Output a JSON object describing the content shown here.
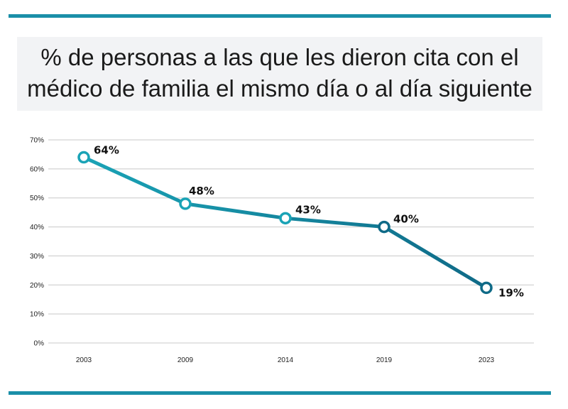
{
  "colors": {
    "line_start": "#1aa3b6",
    "line_end": "#0f6a87",
    "rule": "#1a8fa8",
    "grid": "#c8c8c8",
    "marker_fill": "#ffffff"
  },
  "chart_data": {
    "type": "line",
    "title_lines": [
      "% de personas a las que les dieron cita con el",
      "médico de familia el mismo día o al día siguiente"
    ],
    "categories": [
      "2003",
      "2009",
      "2014",
      "2019",
      "2023"
    ],
    "values": [
      64,
      48,
      43,
      40,
      19
    ],
    "value_labels": [
      "64%",
      "48%",
      "43%",
      "40%",
      "19%"
    ],
    "y_ticks": [
      0,
      10,
      20,
      30,
      40,
      50,
      60,
      70
    ],
    "y_tick_labels": [
      "0%",
      "10%",
      "20%",
      "30%",
      "40%",
      "50%",
      "60%",
      "70%"
    ],
    "ylim": [
      0,
      70
    ],
    "grid": true,
    "xlabel": "",
    "ylabel": ""
  }
}
